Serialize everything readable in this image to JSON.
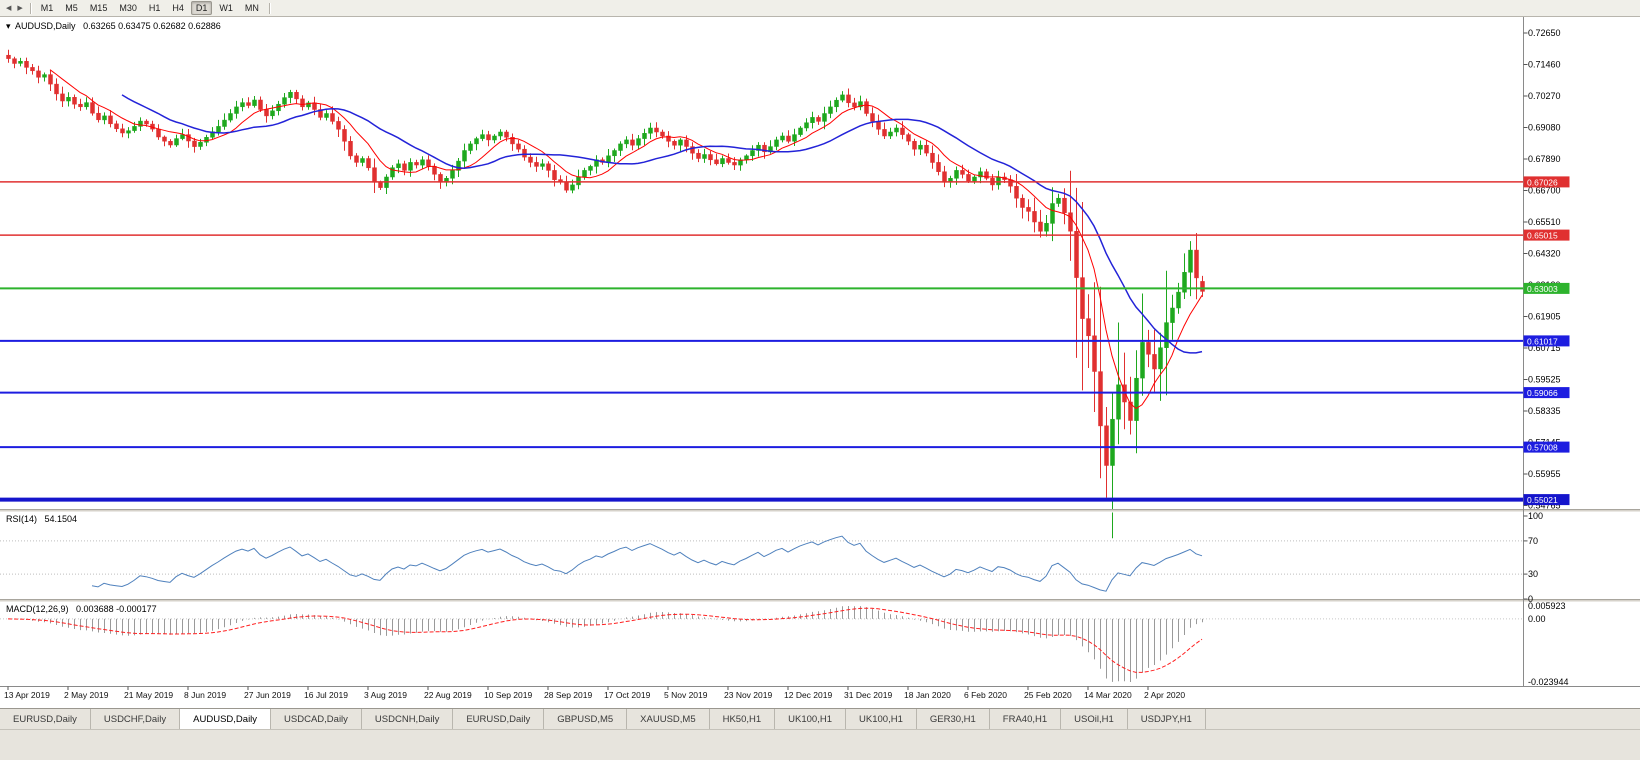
{
  "toolbar": {
    "timeframes": [
      "M1",
      "M5",
      "M15",
      "M30",
      "H1",
      "H4",
      "D1",
      "W1",
      "MN"
    ],
    "active_timeframe": "D1"
  },
  "header": {
    "dropdown_icon": "▾",
    "symbol": "AUDUSD,Daily",
    "ohlc": "0.63265 0.63475 0.62682 0.62886"
  },
  "price_axis": {
    "labels": [
      "0.72650",
      "0.71460",
      "0.70270",
      "0.69080",
      "0.67890",
      "0.66700",
      "0.65510",
      "0.64320",
      "0.63130",
      "0.61905",
      "0.60715",
      "0.59525",
      "0.58335",
      "0.57145",
      "0.55955",
      "0.54765"
    ]
  },
  "date_axis": {
    "labels": [
      "13 Apr 2019",
      "2 May 2019",
      "21 May 2019",
      "8 Jun 2019",
      "27 Jun 2019",
      "16 Jul 2019",
      "3 Aug 2019",
      "22 Aug 2019",
      "10 Sep 2019",
      "28 Sep 2019",
      "17 Oct 2019",
      "5 Nov 2019",
      "23 Nov 2019",
      "12 Dec 2019",
      "31 Dec 2019",
      "18 Jan 2020",
      "6 Feb 2020",
      "25 Feb 2020",
      "14 Mar 2020",
      "2 Apr 2020"
    ]
  },
  "hlines": [
    {
      "price": 0.67026,
      "label": "0.67026",
      "color": "#e03030",
      "width": 1.5
    },
    {
      "price": 0.65015,
      "label": "0.65015",
      "color": "#e03030",
      "width": 1.5
    },
    {
      "price": 0.63003,
      "label": "0.63003",
      "color": "#2db32d",
      "width": 2
    },
    {
      "price": 0.61017,
      "label": "0.61017",
      "color": "#1d1de0",
      "width": 2
    },
    {
      "price": 0.59066,
      "label": "0.59066",
      "color": "#1d1de0",
      "width": 2
    },
    {
      "price": 0.57008,
      "label": "0.57008",
      "color": "#1d1de0",
      "width": 2
    },
    {
      "price": 0.55021,
      "label": "0.55021",
      "color": "#1515cc",
      "width": 4
    }
  ],
  "rsi_panel": {
    "name": "RSI(14)",
    "value": "54.1504",
    "scale": [
      "100",
      "70",
      "30",
      "0"
    ],
    "levels": [
      70,
      30
    ],
    "color": "#4f81bd"
  },
  "macd_panel": {
    "name": "MACD(12,26,9)",
    "value": "0.003688 -0.000177",
    "scale_top": "0.005923",
    "scale_zero": "0.00",
    "scale_bottom": "-0.023944"
  },
  "tabs": {
    "active_index": 2,
    "items": [
      "EURUSD,Daily",
      "USDCHF,Daily",
      "AUDUSD,Daily",
      "USDCAD,Daily",
      "USDCNH,Daily",
      "EURUSD,Daily",
      "GBPUSD,M5",
      "XAUUSD,M5",
      "HK50,H1",
      "UK100,H1",
      "UK100,H1",
      "GER30,H1",
      "FRA40,H1",
      "USOil,H1",
      "USDJPY,H1"
    ]
  },
  "colors": {
    "up": "#1ea81e",
    "down": "#e03030",
    "ma_fast": "#ff0000",
    "ma_slow": "#2323d8",
    "rsi": "#4f81bd",
    "macd_hist": "#9a9a9a",
    "macd_signal": "#ff2020",
    "axis": "#8a8a8a"
  },
  "chart_data": {
    "type": "candlestick",
    "symbol": "AUDUSD",
    "timeframe": "Daily",
    "y_range": [
      0.54765,
      0.7265
    ],
    "last_candle": {
      "open": 0.63265,
      "high": 0.63475,
      "low": 0.62682,
      "close": 0.62886
    },
    "special_lows": {
      "183": 0.551
    },
    "overlays": [
      {
        "name": "MA-fast",
        "type": "sma",
        "period": 8,
        "color": "#ff0000"
      },
      {
        "name": "MA-slow",
        "type": "sma",
        "period": 20,
        "color": "#2323d8"
      }
    ],
    "indicators": [
      {
        "name": "RSI",
        "period": 14,
        "last": 54.1504
      },
      {
        "name": "MACD",
        "fast": 12,
        "slow": 26,
        "signal": 9,
        "last_main": 0.003688,
        "last_signal": -0.000177,
        "max": 0.005923,
        "min": -0.023944
      }
    ],
    "closes": [
      0.7168,
      0.715,
      0.7158,
      0.7135,
      0.7122,
      0.7098,
      0.7108,
      0.7072,
      0.7035,
      0.7008,
      0.7022,
      0.6996,
      0.6986,
      0.7002,
      0.6962,
      0.6937,
      0.6952,
      0.6922,
      0.6903,
      0.6887,
      0.6896,
      0.6912,
      0.6932,
      0.6921,
      0.6902,
      0.6872,
      0.6856,
      0.6842,
      0.6866,
      0.6881,
      0.6857,
      0.6836,
      0.6852,
      0.6871,
      0.6892,
      0.6912,
      0.6936,
      0.6961,
      0.6986,
      0.7002,
      0.6991,
      0.7012,
      0.6976,
      0.6952,
      0.6971,
      0.6996,
      0.7021,
      0.7041,
      0.7016,
      0.6986,
      0.7001,
      0.6976,
      0.6946,
      0.6961,
      0.6931,
      0.6901,
      0.6856,
      0.6801,
      0.6776,
      0.6791,
      0.6756,
      0.6701,
      0.6681,
      0.6721,
      0.6756,
      0.6771,
      0.6746,
      0.6776,
      0.6766,
      0.6786,
      0.6761,
      0.6731,
      0.6701,
      0.6716,
      0.6746,
      0.6781,
      0.6821,
      0.6846,
      0.6866,
      0.6881,
      0.6861,
      0.6876,
      0.6891,
      0.6871,
      0.6846,
      0.6826,
      0.6796,
      0.6776,
      0.6761,
      0.6771,
      0.6746,
      0.6711,
      0.6701,
      0.6671,
      0.6691,
      0.6721,
      0.6746,
      0.6761,
      0.6786,
      0.6776,
      0.6801,
      0.6821,
      0.6846,
      0.6861,
      0.6841,
      0.6866,
      0.6886,
      0.6906,
      0.6891,
      0.6876,
      0.6856,
      0.6841,
      0.6861,
      0.6836,
      0.6811,
      0.6791,
      0.6806,
      0.6786,
      0.6771,
      0.6791,
      0.6776,
      0.6766,
      0.6786,
      0.6801,
      0.6821,
      0.6841,
      0.6816,
      0.6836,
      0.6861,
      0.6876,
      0.6856,
      0.6881,
      0.6906,
      0.6926,
      0.6946,
      0.6931,
      0.6961,
      0.6986,
      0.7011,
      0.7031,
      0.7001,
      0.6986,
      0.7006,
      0.6961,
      0.6931,
      0.6901,
      0.6876,
      0.6891,
      0.6906,
      0.6881,
      0.6856,
      0.6826,
      0.6841,
      0.6811,
      0.6776,
      0.6741,
      0.6701,
      0.6716,
      0.6746,
      0.6731,
      0.6706,
      0.6721,
      0.6741,
      0.6716,
      0.6691,
      0.6721,
      0.6711,
      0.6686,
      0.6641,
      0.6606,
      0.6591,
      0.6551,
      0.6516,
      0.6546,
      0.6621,
      0.6641,
      0.6586,
      0.6516,
      0.6341,
      0.6186,
      0.6121,
      0.5986,
      0.5781,
      0.5631,
      0.5806,
      0.5936,
      0.5871,
      0.5801,
      0.5961,
      0.6096,
      0.6051,
      0.5996,
      0.6076,
      0.6171,
      0.6226,
      0.6286,
      0.6361,
      0.6445,
      0.634,
      0.62886
    ]
  }
}
